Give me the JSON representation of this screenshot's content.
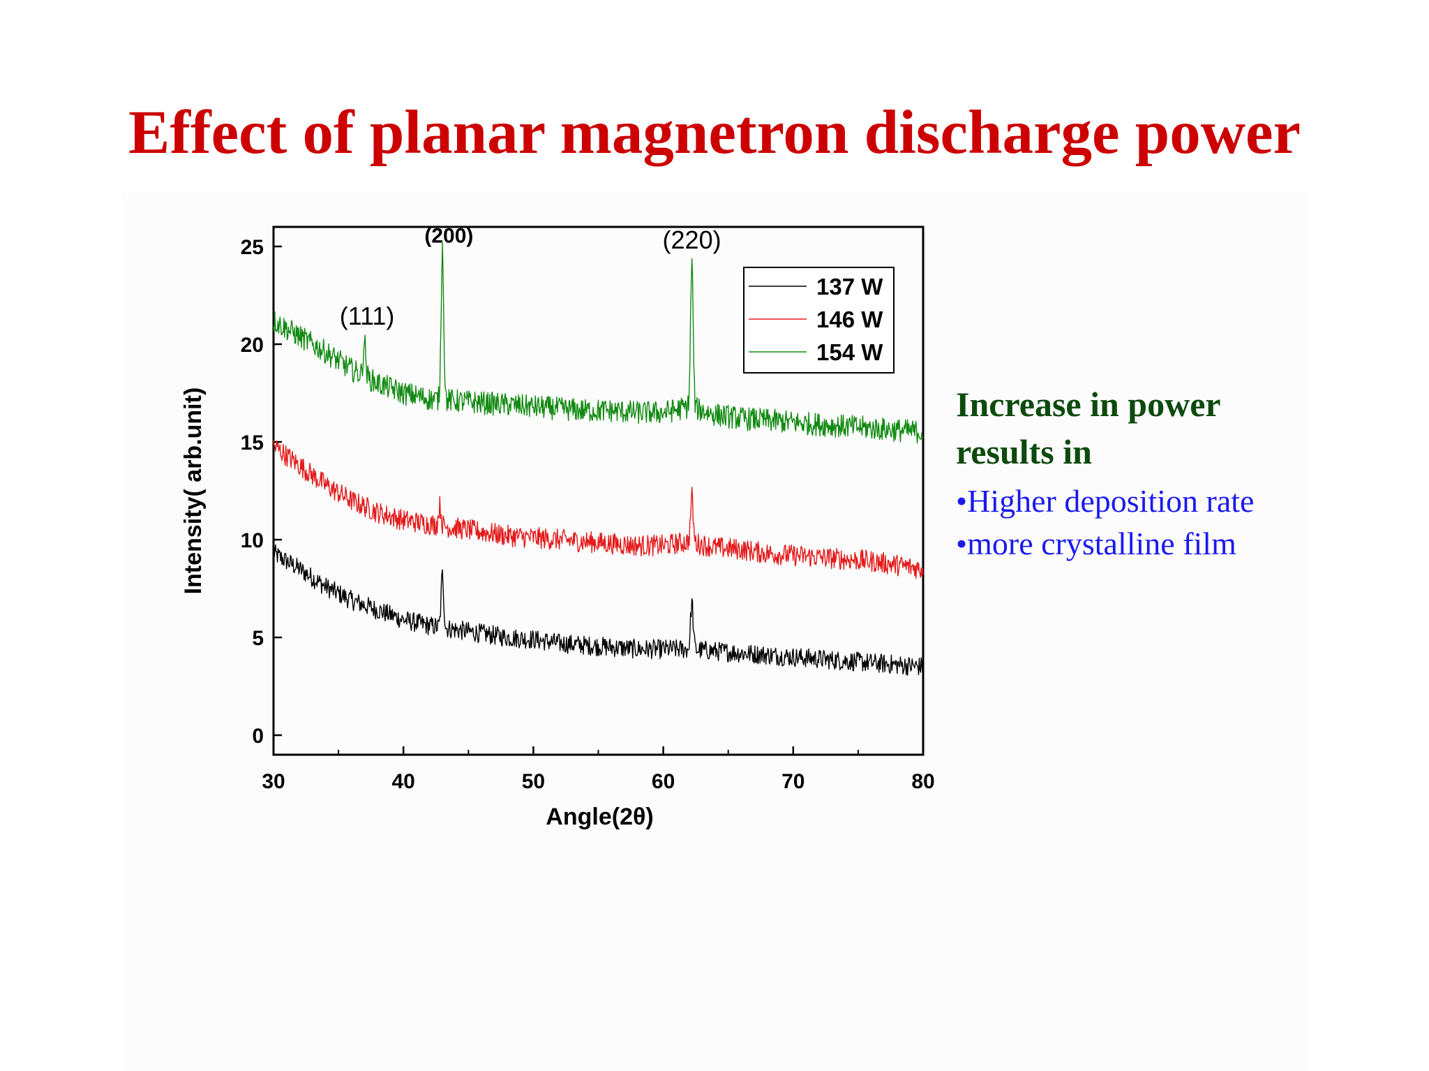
{
  "slide": {
    "title": "Effect of planar magnetron discharge power",
    "title_color": "#cc0000",
    "heading_line1": "Increase in power",
    "heading_line2": "results in",
    "heading_color": "#0d4a0d",
    "bullet_color": "#1a1aee",
    "bullets": [
      "•Higher deposition rate",
      "•more crystalline film"
    ]
  },
  "chart_data": {
    "type": "line",
    "xlabel": "Angle(2θ)",
    "ylabel": "Intensity( arb.unit)",
    "xlim": [
      30,
      80
    ],
    "ylim": [
      -1,
      26
    ],
    "xticks": [
      30,
      40,
      50,
      60,
      70,
      80
    ],
    "yticks": [
      0,
      5,
      10,
      15,
      20,
      25
    ],
    "grid": false,
    "legend_position": "top-right",
    "series": [
      {
        "name": "137 W",
        "color": "#000000",
        "noise": 0.5,
        "x": [
          30,
          32,
          34,
          36,
          38,
          40,
          42,
          44,
          46,
          48,
          50,
          52,
          54,
          56,
          58,
          60,
          62,
          64,
          66,
          68,
          70,
          72,
          74,
          76,
          78,
          80
        ],
        "y": [
          9.3,
          8.5,
          7.6,
          6.9,
          6.4,
          5.9,
          5.6,
          5.4,
          5.2,
          5.0,
          4.9,
          4.7,
          4.6,
          4.5,
          4.4,
          4.4,
          4.4,
          4.3,
          4.2,
          4.1,
          4.0,
          3.9,
          3.8,
          3.7,
          3.6,
          3.5
        ],
        "peaks": [
          {
            "x": 43.0,
            "height": 2.7
          },
          {
            "x": 62.2,
            "height": 2.4
          }
        ]
      },
      {
        "name": "146 W",
        "color": "#e41a1a",
        "noise": 0.55,
        "x": [
          30,
          32,
          34,
          36,
          38,
          40,
          42,
          44,
          46,
          48,
          50,
          52,
          54,
          56,
          58,
          60,
          62,
          64,
          66,
          68,
          70,
          72,
          74,
          76,
          78,
          80
        ],
        "y": [
          14.8,
          13.8,
          12.8,
          12.0,
          11.4,
          11.0,
          10.8,
          10.6,
          10.4,
          10.2,
          10.1,
          10.0,
          9.9,
          9.8,
          9.7,
          9.7,
          9.9,
          9.6,
          9.5,
          9.3,
          9.2,
          9.1,
          9.0,
          8.9,
          8.7,
          8.5
        ],
        "peaks": [
          {
            "x": 42.8,
            "height": 1.0
          },
          {
            "x": 62.2,
            "height": 2.3
          }
        ]
      },
      {
        "name": "154 W",
        "color": "#108a10",
        "noise": 0.6,
        "x": [
          30,
          32,
          34,
          36,
          38,
          40,
          42,
          44,
          46,
          48,
          50,
          52,
          54,
          56,
          58,
          60,
          62,
          64,
          66,
          68,
          70,
          72,
          74,
          76,
          78,
          80
        ],
        "y": [
          21.2,
          20.4,
          19.6,
          18.7,
          18.0,
          17.5,
          17.2,
          17.1,
          17.0,
          16.9,
          16.8,
          16.7,
          16.6,
          16.6,
          16.5,
          16.5,
          16.8,
          16.4,
          16.2,
          16.1,
          16.0,
          15.9,
          15.8,
          15.7,
          15.6,
          15.5
        ],
        "peaks": [
          {
            "x": 37.0,
            "height": 1.8
          },
          {
            "x": 43.0,
            "height": 7.8
          },
          {
            "x": 62.2,
            "height": 7.4
          }
        ]
      }
    ],
    "annotations": [
      {
        "text": "(111)",
        "x": 37.2,
        "y": 21.0,
        "bold": false
      },
      {
        "text": "(200)",
        "x": 43.5,
        "y": 25.2,
        "bold": true
      },
      {
        "text": "(220)",
        "x": 62.2,
        "y": 24.9,
        "bold": false
      }
    ]
  }
}
